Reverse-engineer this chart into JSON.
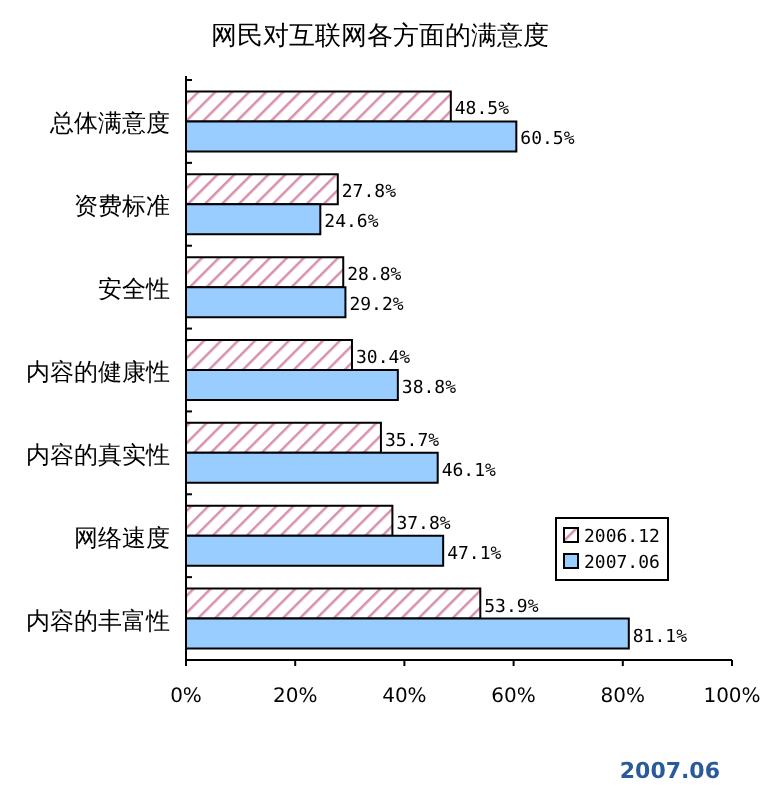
{
  "chart_data": {
    "type": "bar",
    "orientation": "horizontal",
    "title": "网民对互联网各方面的满意度",
    "categories": [
      "总体满意度",
      "资费标准",
      "安全性",
      "内容的健康性",
      "内容的真实性",
      "网络速度",
      "内容的丰富性"
    ],
    "series": [
      {
        "name": "2006.12",
        "color": "#d98fb0",
        "values": [
          48.5,
          27.8,
          28.8,
          30.4,
          35.7,
          37.8,
          53.9
        ],
        "value_labels": [
          "48.5%",
          "27.8%",
          "28.8%",
          "30.4%",
          "35.7%",
          "37.8%",
          "53.9%"
        ]
      },
      {
        "name": "2007.06",
        "color": "#99ccff",
        "values": [
          60.5,
          24.6,
          29.2,
          38.8,
          46.1,
          47.1,
          81.1
        ],
        "value_labels": [
          "60.5%",
          "24.6%",
          "29.2%",
          "38.8%",
          "46.1%",
          "47.1%",
          "81.1%"
        ]
      }
    ],
    "xlim": [
      0,
      100
    ],
    "xticks": [
      {
        "value": 0,
        "label": "0%"
      },
      {
        "value": 20,
        "label": "20%"
      },
      {
        "value": 40,
        "label": "40%"
      },
      {
        "value": 60,
        "label": "60%"
      },
      {
        "value": 80,
        "label": "80%"
      },
      {
        "value": 100,
        "label": "100%"
      }
    ],
    "legend": "right",
    "grid": false,
    "annotations": [
      "2007.06"
    ]
  }
}
